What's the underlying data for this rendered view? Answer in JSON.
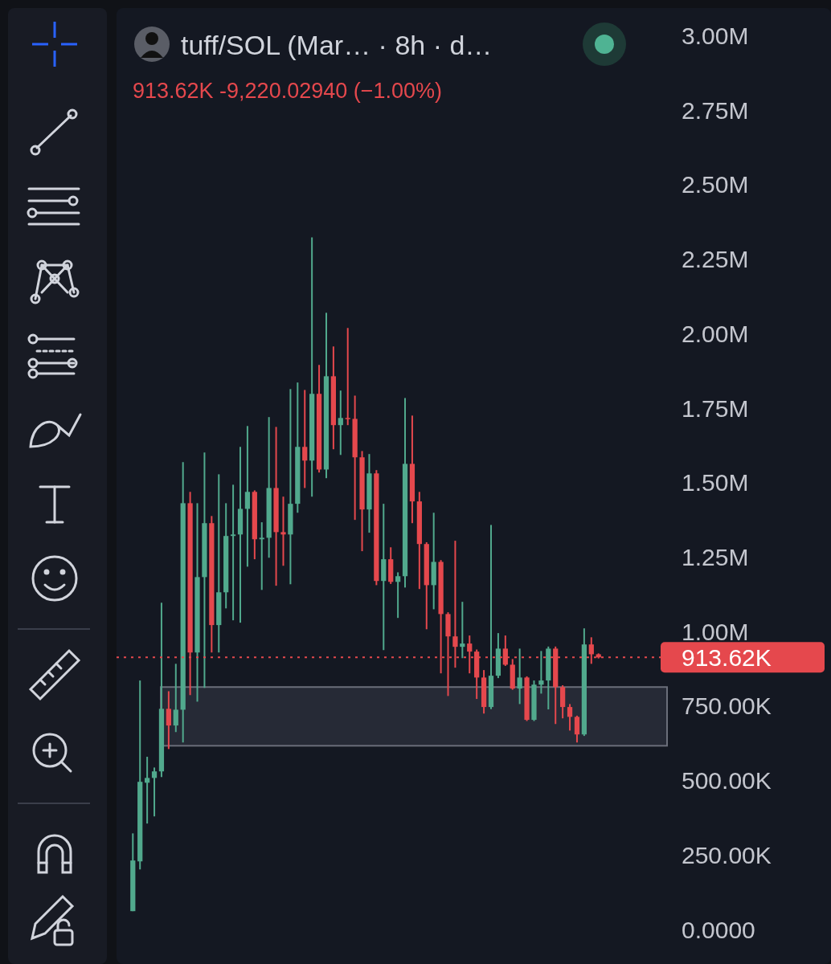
{
  "chart_data": {
    "type": "candlestick",
    "title": "tuff/SOL (Mar…  · 8h · d…",
    "subtitle": "913.62K  -9,220.02940 (−1.00%)",
    "categories": [
      null,
      null,
      null,
      null,
      null,
      null,
      null,
      null,
      null,
      null,
      null,
      null,
      null,
      null,
      null,
      null,
      null,
      null,
      null,
      null,
      null,
      null,
      null,
      null,
      null,
      null,
      null,
      null,
      null,
      null,
      null,
      null,
      null,
      null,
      null,
      null,
      null,
      null,
      null,
      null,
      null,
      null,
      null,
      null,
      null,
      null,
      null,
      null,
      null,
      null,
      null,
      null,
      null,
      null,
      null,
      null,
      null,
      null,
      null,
      null,
      null,
      null,
      null,
      null,
      null,
      null
    ],
    "ohlc": [
      [
        62000,
        323000,
        62000,
        232000
      ],
      [
        229000,
        836000,
        202000,
        496000
      ],
      [
        493000,
        580000,
        356000,
        509000
      ],
      [
        509000,
        544000,
        380000,
        531000
      ],
      [
        531000,
        1097000,
        512000,
        741000
      ],
      [
        741000,
        800000,
        606000,
        685000
      ],
      [
        685000,
        892000,
        663000,
        738000
      ],
      [
        738000,
        1569000,
        628000,
        1431000
      ],
      [
        1431000,
        1469000,
        787000,
        930000
      ],
      [
        930000,
        1431000,
        765000,
        1183000
      ],
      [
        1183000,
        1601000,
        811000,
        1364000
      ],
      [
        1364000,
        1388000,
        930000,
        1022000
      ],
      [
        1022000,
        1528000,
        930000,
        1132000
      ],
      [
        1132000,
        1431000,
        1078000,
        1321000
      ],
      [
        1321000,
        1493000,
        1038000,
        1326000
      ],
      [
        1326000,
        1620000,
        1030000,
        1412000
      ],
      [
        1412000,
        1690000,
        1218000,
        1469000
      ],
      [
        1469000,
        1474000,
        1243000,
        1310000
      ],
      [
        1310000,
        1367000,
        1140000,
        1315000
      ],
      [
        1315000,
        1720000,
        1248000,
        1482000
      ],
      [
        1482000,
        1687000,
        1154000,
        1334000
      ],
      [
        1334000,
        1453000,
        1221000,
        1326000
      ],
      [
        1326000,
        1814000,
        1159000,
        1429000
      ],
      [
        1429000,
        1836000,
        1399000,
        1620000
      ],
      [
        1620000,
        1811000,
        1482000,
        1574000
      ],
      [
        1574000,
        2323000,
        1453000,
        1798000
      ],
      [
        1798000,
        1895000,
        1534000,
        1544000
      ],
      [
        1544000,
        2070000,
        1515000,
        1857000
      ],
      [
        1857000,
        1957000,
        1612000,
        1693000
      ],
      [
        1693000,
        1809000,
        1593000,
        1717000
      ],
      [
        1717000,
        2019000,
        1693000,
        1714000
      ],
      [
        1714000,
        1792000,
        1375000,
        1585000
      ],
      [
        1585000,
        1606000,
        1270000,
        1410000
      ],
      [
        1410000,
        1596000,
        1332000,
        1531000
      ],
      [
        1531000,
        1542000,
        1156000,
        1170000
      ],
      [
        1170000,
        1429000,
        938000,
        1243000
      ],
      [
        1243000,
        1283000,
        1160000,
        1167000
      ],
      [
        1167000,
        1199000,
        1046000,
        1186000
      ],
      [
        1186000,
        1784000,
        1148000,
        1563000
      ],
      [
        1563000,
        1725000,
        1364000,
        1437000
      ],
      [
        1437000,
        1469000,
        1143000,
        1294000
      ],
      [
        1294000,
        1300000,
        1008000,
        1156000
      ],
      [
        1156000,
        1399000,
        1075000,
        1234000
      ],
      [
        1234000,
        1240000,
        860000,
        1059000
      ],
      [
        1059000,
        1065000,
        784000,
        984000
      ],
      [
        984000,
        1305000,
        879000,
        949000
      ],
      [
        949000,
        1100000,
        911000,
        960000
      ],
      [
        960000,
        987000,
        860000,
        933000
      ],
      [
        933000,
        940000,
        774000,
        846000
      ],
      [
        846000,
        871000,
        725000,
        747000
      ],
      [
        747000,
        1358000,
        740000,
        852000
      ],
      [
        852000,
        995000,
        844000,
        943000
      ],
      [
        943000,
        987000,
        885000,
        889000
      ],
      [
        889000,
        908000,
        805000,
        809000
      ],
      [
        809000,
        943000,
        757000,
        846000
      ],
      [
        846000,
        850000,
        700000,
        704000
      ],
      [
        704000,
        836000,
        700000,
        822000
      ],
      [
        822000,
        935000,
        792000,
        836000
      ],
      [
        836000,
        950000,
        739000,
        943000
      ],
      [
        943000,
        950000,
        690000,
        814000
      ],
      [
        814000,
        820000,
        709000,
        747000
      ],
      [
        747000,
        757000,
        668000,
        714000
      ],
      [
        714000,
        718000,
        628000,
        655000
      ],
      [
        655000,
        1011000,
        650000,
        957000
      ],
      [
        957000,
        981000,
        892000,
        924000
      ],
      [
        924000,
        927000,
        910000,
        913620
      ]
    ],
    "colors": [
      "#51a98d",
      "#51a98d",
      "#51a98d",
      "#51a98d",
      "#51a98d",
      "#e5484d",
      "#51a98d",
      "#51a98d",
      "#e5484d",
      "#51a98d",
      "#51a98d",
      "#e5484d",
      "#51a98d",
      "#51a98d",
      "#51a98d",
      "#51a98d",
      "#51a98d",
      "#e5484d",
      "#51a98d",
      "#51a98d",
      "#e5484d",
      "#e5484d",
      "#51a98d",
      "#51a98d",
      "#e5484d",
      "#51a98d",
      "#e5484d",
      "#51a98d",
      "#e5484d",
      "#51a98d",
      "#e5484d",
      "#e5484d",
      "#e5484d",
      "#51a98d",
      "#e5484d",
      "#51a98d",
      "#e5484d",
      "#51a98d",
      "#51a98d",
      "#e5484d",
      "#e5484d",
      "#e5484d",
      "#51a98d",
      "#e5484d",
      "#e5484d",
      "#e5484d",
      "#51a98d",
      "#e5484d",
      "#e5484d",
      "#e5484d",
      "#51a98d",
      "#51a98d",
      "#e5484d",
      "#e5484d",
      "#51a98d",
      "#e5484d",
      "#51a98d",
      "#51a98d",
      "#51a98d",
      "#e5484d",
      "#e5484d",
      "#e5484d",
      "#e5484d",
      "#51a98d",
      "#e5484d",
      "#e5484d"
    ],
    "ylim": [
      -110000,
      3090000
    ],
    "yticks": [
      {
        "value": 0,
        "label": "0.0000"
      },
      {
        "value": 250000,
        "label": "250.00K"
      },
      {
        "value": 500000,
        "label": "500.00K"
      },
      {
        "value": 750000,
        "label": "750.00K"
      },
      {
        "value": 1000000,
        "label": "1.00M"
      },
      {
        "value": 1250000,
        "label": "1.25M"
      },
      {
        "value": 1500000,
        "label": "1.50M"
      },
      {
        "value": 1750000,
        "label": "1.75M"
      },
      {
        "value": 2000000,
        "label": "2.00M"
      },
      {
        "value": 2250000,
        "label": "2.25M"
      },
      {
        "value": 2500000,
        "label": "2.50M"
      },
      {
        "value": 2750000,
        "label": "2.75M"
      },
      {
        "value": 3000000,
        "label": "3.00M"
      }
    ],
    "tick_labels": "y",
    "ref_lines": [
      {
        "axis": "y",
        "value": 913620,
        "label": "913.62K",
        "color": "#e5484d",
        "line_style": "dotted"
      }
    ],
    "bands": [
      {
        "axis": "y",
        "from": 617000,
        "to": 814000,
        "color": "#262a36"
      }
    ]
  }
}
